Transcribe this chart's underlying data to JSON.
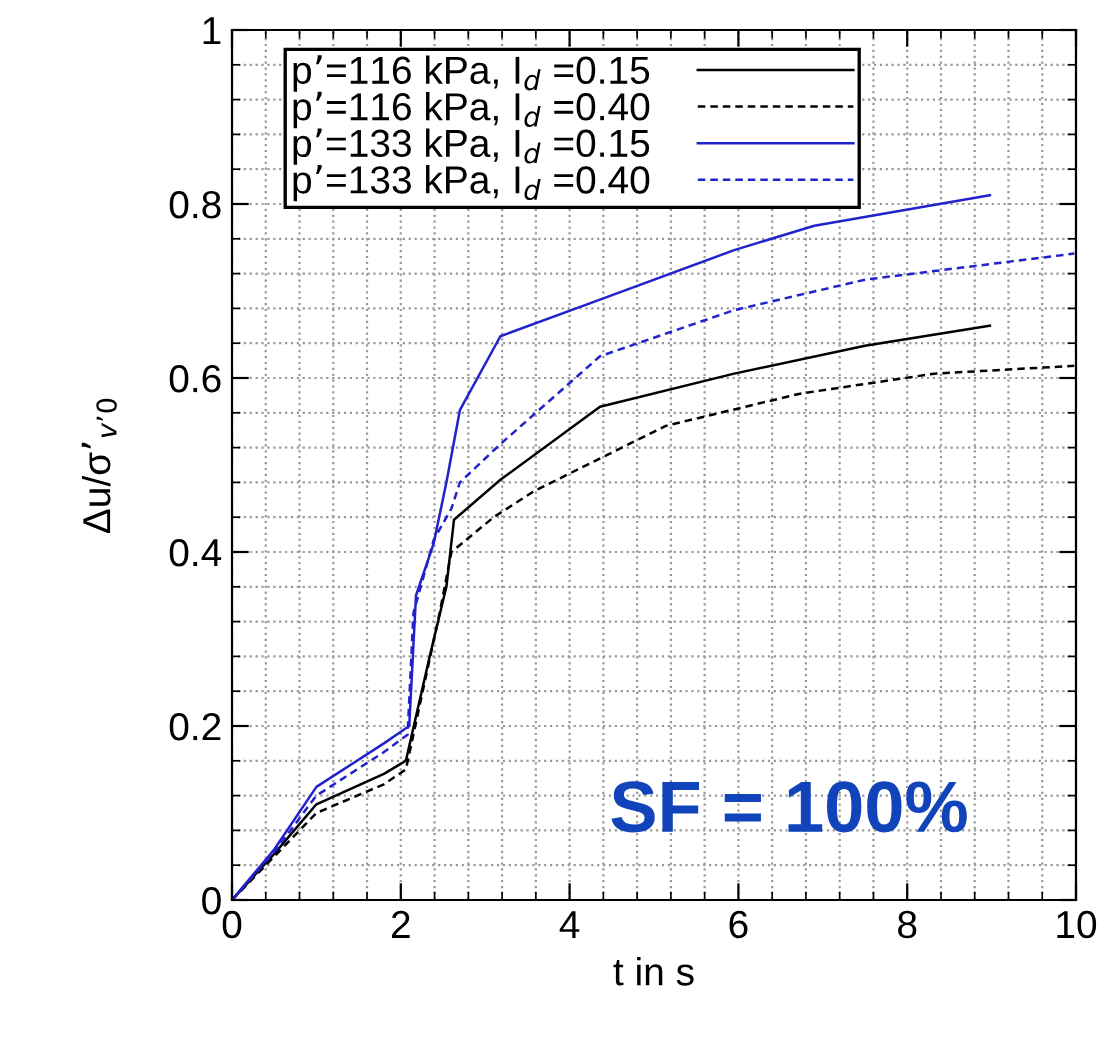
{
  "chart_data": {
    "type": "line",
    "xlabel": "t in s",
    "ylabel": "Δu/σ’$_{v’0}$",
    "xlim": [
      0,
      10
    ],
    "ylim": [
      0,
      1
    ],
    "xticks": [
      0,
      2,
      4,
      6,
      8,
      10
    ],
    "yticks": [
      0,
      0.2,
      0.4,
      0.6,
      0.8,
      1
    ],
    "grid": true,
    "legend": "top left",
    "annotations": [
      "SF = 100%"
    ],
    "series": [
      {
        "name": "p’=116 kPa, I$_{d}$ =0.15",
        "color": "#000000",
        "line_style": "solid",
        "x": [
          0,
          0.5,
          1,
          1.8,
          2.06,
          2.35,
          2.54,
          2.63,
          3.18,
          4.36,
          5.95,
          7.5,
          8.98
        ],
        "values": [
          0,
          0.053,
          0.11,
          0.145,
          0.16,
          0.283,
          0.36,
          0.437,
          0.483,
          0.567,
          0.605,
          0.637,
          0.66
        ]
      },
      {
        "name": "p’=116 kPa, I$_{d}$ =0.40",
        "color": "#000000",
        "line_style": "dashed",
        "x": [
          0,
          0.5,
          1,
          1.8,
          2.06,
          2.46,
          2.6,
          3.1,
          3.58,
          5.14,
          6.73,
          8.32,
          9.98
        ],
        "values": [
          0,
          0.05,
          0.1,
          0.133,
          0.15,
          0.33,
          0.4,
          0.44,
          0.47,
          0.545,
          0.582,
          0.605,
          0.614
        ]
      },
      {
        "name": "p’=133 kPa, I$_{d}$ =0.15",
        "color": "#2222cc",
        "line_style": "solid",
        "x": [
          0,
          0.5,
          1,
          1.8,
          2.1,
          2.18,
          2.39,
          2.54,
          2.7,
          3.18,
          4.36,
          5.95,
          6.9,
          8.98
        ],
        "values": [
          0,
          0.058,
          0.13,
          0.18,
          0.2,
          0.35,
          0.41,
          0.48,
          0.563,
          0.648,
          0.69,
          0.747,
          0.775,
          0.81
        ]
      },
      {
        "name": "p’=133 kPa, I$_{d}$ =0.40",
        "color": "#2222cc",
        "line_style": "dashed",
        "x": [
          0,
          0.5,
          1,
          1.8,
          2.08,
          2.15,
          2.39,
          2.6,
          2.7,
          3.18,
          4.36,
          5.95,
          7.5,
          9.98
        ],
        "values": [
          0,
          0.055,
          0.12,
          0.17,
          0.19,
          0.33,
          0.414,
          0.45,
          0.48,
          0.524,
          0.625,
          0.678,
          0.713,
          0.743
        ]
      }
    ]
  }
}
